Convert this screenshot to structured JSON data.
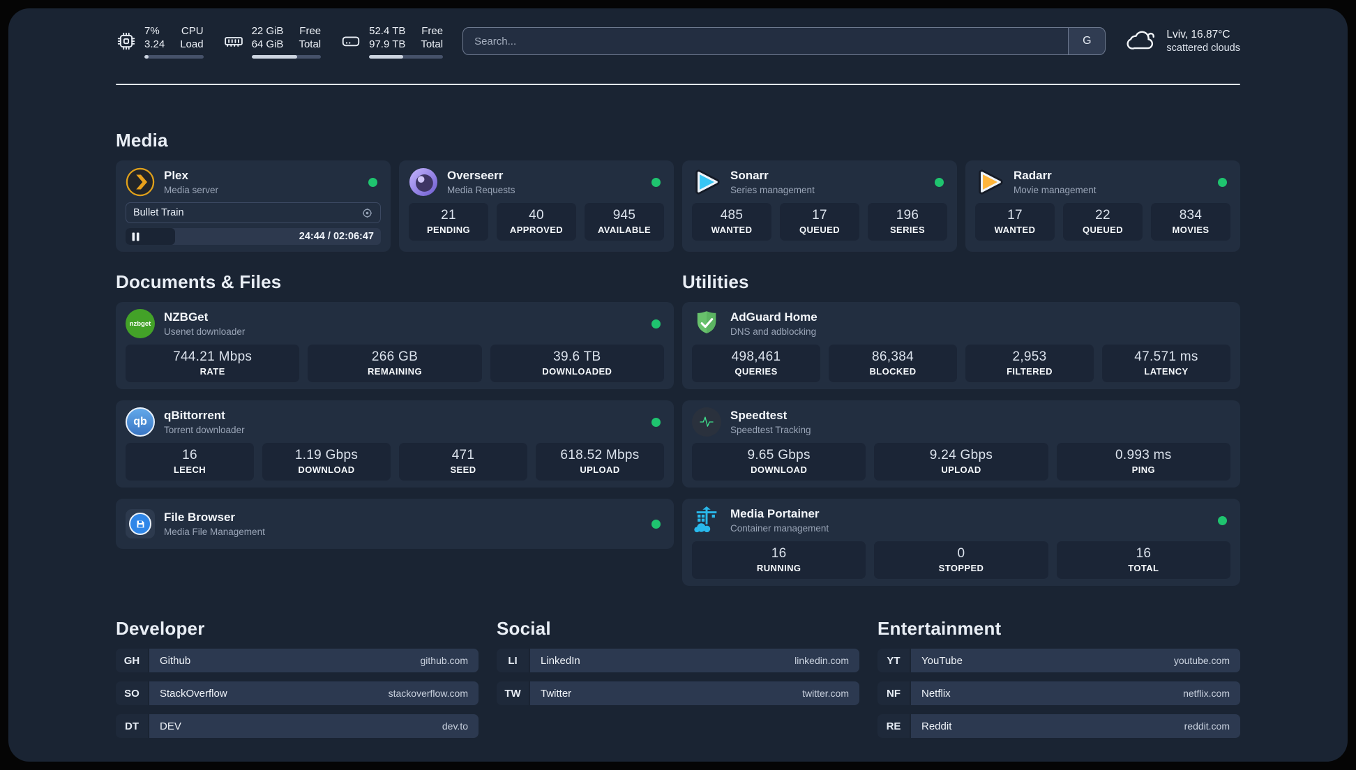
{
  "header": {
    "stats": [
      {
        "name": "cpu",
        "value_top": "7%",
        "value_bottom": "3.24",
        "label_top": "CPU",
        "label_bottom": "Load",
        "progress_pct": 7
      },
      {
        "name": "memory",
        "value_top": "22 GiB",
        "value_bottom": "64 GiB",
        "label_top": "Free",
        "label_bottom": "Total",
        "progress_pct": 66
      },
      {
        "name": "storage",
        "value_top": "52.4 TB",
        "value_bottom": "97.9 TB",
        "label_top": "Free",
        "label_bottom": "Total",
        "progress_pct": 46
      }
    ],
    "search": {
      "placeholder": "Search...",
      "engine_button": "G"
    },
    "weather": {
      "location": "Lviv, 16.87°C",
      "condition": "scattered clouds"
    }
  },
  "sections": {
    "media": {
      "title": "Media",
      "plex": {
        "title": "Plex",
        "subtitle": "Media server",
        "status": "online",
        "player": {
          "now_playing": "Bullet Train",
          "time_display": "24:44 / 02:06:47",
          "elapsed": "24:44",
          "duration": "02:06:47",
          "progress_pct": 19.5
        }
      },
      "overseerr": {
        "title": "Overseerr",
        "subtitle": "Media Requests",
        "status": "online",
        "stats": [
          {
            "value": "21",
            "label": "PENDING"
          },
          {
            "value": "40",
            "label": "APPROVED"
          },
          {
            "value": "945",
            "label": "AVAILABLE"
          }
        ]
      },
      "sonarr": {
        "title": "Sonarr",
        "subtitle": "Series management",
        "status": "online",
        "stats": [
          {
            "value": "485",
            "label": "WANTED"
          },
          {
            "value": "17",
            "label": "QUEUED"
          },
          {
            "value": "196",
            "label": "SERIES"
          }
        ]
      },
      "radarr": {
        "title": "Radarr",
        "subtitle": "Movie management",
        "status": "online",
        "stats": [
          {
            "value": "17",
            "label": "WANTED"
          },
          {
            "value": "22",
            "label": "QUEUED"
          },
          {
            "value": "834",
            "label": "MOVIES"
          }
        ]
      }
    },
    "documents": {
      "title": "Documents & Files",
      "nzbget": {
        "title": "NZBGet",
        "subtitle": "Usenet downloader",
        "status": "online",
        "stats": [
          {
            "value": "744.21 Mbps",
            "label": "RATE"
          },
          {
            "value": "266 GB",
            "label": "REMAINING"
          },
          {
            "value": "39.6 TB",
            "label": "DOWNLOADED"
          }
        ]
      },
      "qbittorrent": {
        "title": "qBittorrent",
        "subtitle": "Torrent downloader",
        "status": "online",
        "stats": [
          {
            "value": "16",
            "label": "LEECH"
          },
          {
            "value": "1.19 Gbps",
            "label": "DOWNLOAD"
          },
          {
            "value": "471",
            "label": "SEED"
          },
          {
            "value": "618.52 Mbps",
            "label": "UPLOAD"
          }
        ]
      },
      "filebrowser": {
        "title": "File Browser",
        "subtitle": "Media File Management",
        "status": "online"
      }
    },
    "utilities": {
      "title": "Utilities",
      "adguard": {
        "title": "AdGuard Home",
        "subtitle": "DNS and adblocking",
        "stats": [
          {
            "value": "498,461",
            "label": "QUERIES"
          },
          {
            "value": "86,384",
            "label": "BLOCKED"
          },
          {
            "value": "2,953",
            "label": "FILTERED"
          },
          {
            "value": "47.571 ms",
            "label": "LATENCY"
          }
        ]
      },
      "speedtest": {
        "title": "Speedtest",
        "subtitle": "Speedtest Tracking",
        "stats": [
          {
            "value": "9.65 Gbps",
            "label": "DOWNLOAD"
          },
          {
            "value": "9.24 Gbps",
            "label": "UPLOAD"
          },
          {
            "value": "0.993 ms",
            "label": "PING"
          }
        ]
      },
      "portainer": {
        "title": "Media Portainer",
        "subtitle": "Container management",
        "status": "online",
        "stats": [
          {
            "value": "16",
            "label": "RUNNING"
          },
          {
            "value": "0",
            "label": "STOPPED"
          },
          {
            "value": "16",
            "label": "TOTAL"
          }
        ]
      }
    },
    "developer": {
      "title": "Developer",
      "links": [
        {
          "abbr": "GH",
          "name": "Github",
          "url": "github.com"
        },
        {
          "abbr": "SO",
          "name": "StackOverflow",
          "url": "stackoverflow.com"
        },
        {
          "abbr": "DT",
          "name": "DEV",
          "url": "dev.to"
        }
      ]
    },
    "social": {
      "title": "Social",
      "links": [
        {
          "abbr": "LI",
          "name": "LinkedIn",
          "url": "linkedin.com"
        },
        {
          "abbr": "TW",
          "name": "Twitter",
          "url": "twitter.com"
        }
      ]
    },
    "entertainment": {
      "title": "Entertainment",
      "links": [
        {
          "abbr": "YT",
          "name": "YouTube",
          "url": "youtube.com"
        },
        {
          "abbr": "NF",
          "name": "Netflix",
          "url": "netflix.com"
        },
        {
          "abbr": "RE",
          "name": "Reddit",
          "url": "reddit.com"
        }
      ]
    }
  },
  "colors": {
    "status_online": "#1fc46f",
    "plex_brand": "#e5a00d",
    "sonarr_brand": "#38c6f4",
    "radarr_brand": "#ffb53a",
    "nzbget_brand": "#43a228",
    "qbittorrent_brand": "#3a76c4",
    "filebrowser_brand": "#2f86e8",
    "adguard_brand": "#68c16c",
    "speedtest_brand": "#3fe08d",
    "portainer_brand": "#29b8eb",
    "overseerr_brand": "#6d5bd0"
  }
}
